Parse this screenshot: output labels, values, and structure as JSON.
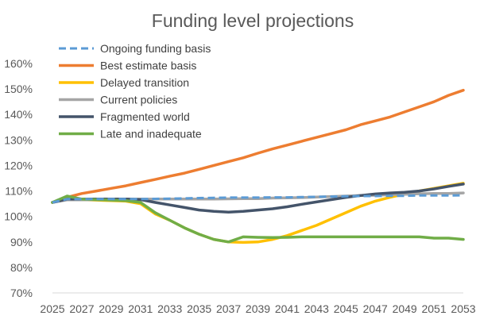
{
  "chart_data": {
    "type": "line",
    "title": "Funding level projections",
    "xlabel": "",
    "ylabel": "",
    "ylim": [
      0.7,
      1.6
    ],
    "y_ticks": [
      0.7,
      0.8,
      0.9,
      1.0,
      1.1,
      1.2,
      1.3,
      1.4,
      1.5,
      1.6
    ],
    "y_tick_labels": [
      "70%",
      "80%",
      "90%",
      "100%",
      "110%",
      "120%",
      "130%",
      "140%",
      "150%",
      "160%"
    ],
    "x": [
      2025,
      2026,
      2027,
      2028,
      2029,
      2030,
      2031,
      2032,
      2033,
      2034,
      2035,
      2036,
      2037,
      2038,
      2039,
      2040,
      2041,
      2042,
      2043,
      2044,
      2045,
      2046,
      2047,
      2048,
      2049,
      2050,
      2051,
      2052,
      2053
    ],
    "x_tick_labels": [
      "2025",
      "2027",
      "2029",
      "2031",
      "2033",
      "2035",
      "2037",
      "2039",
      "2041",
      "2043",
      "2045",
      "2047",
      "2049",
      "2051",
      "2053"
    ],
    "legend_position": "top-left",
    "series": [
      {
        "name": "Ongoing funding basis",
        "color": "#5B9BD5",
        "dashed": true,
        "values": [
          1.055,
          1.068,
          1.068,
          1.068,
          1.068,
          1.068,
          1.068,
          1.069,
          1.07,
          1.071,
          1.072,
          1.073,
          1.074,
          1.074,
          1.074,
          1.075,
          1.075,
          1.076,
          1.077,
          1.078,
          1.079,
          1.08,
          1.08,
          1.081,
          1.081,
          1.082,
          1.082,
          1.082,
          1.083
        ]
      },
      {
        "name": "Best estimate basis",
        "color": "#ED7D31",
        "dashed": false,
        "values": [
          1.055,
          1.075,
          1.09,
          1.1,
          1.11,
          1.12,
          1.133,
          1.145,
          1.158,
          1.17,
          1.185,
          1.2,
          1.215,
          1.23,
          1.248,
          1.265,
          1.28,
          1.295,
          1.31,
          1.325,
          1.34,
          1.36,
          1.375,
          1.39,
          1.41,
          1.43,
          1.45,
          1.475,
          1.495
        ]
      },
      {
        "name": "Delayed transition",
        "color": "#FFC000",
        "dashed": false,
        "values": [
          1.055,
          1.073,
          1.066,
          1.064,
          1.062,
          1.06,
          1.05,
          1.01,
          0.985,
          0.955,
          0.93,
          0.91,
          0.9,
          0.898,
          0.9,
          0.91,
          0.925,
          0.945,
          0.965,
          0.99,
          1.015,
          1.04,
          1.06,
          1.075,
          1.088,
          1.1,
          1.11,
          1.12,
          1.13
        ]
      },
      {
        "name": "Current policies",
        "color": "#A5A5A5",
        "dashed": false,
        "values": [
          1.055,
          1.065,
          1.065,
          1.066,
          1.067,
          1.068,
          1.068,
          1.068,
          1.068,
          1.068,
          1.068,
          1.068,
          1.069,
          1.07,
          1.07,
          1.072,
          1.073,
          1.074,
          1.076,
          1.078,
          1.08,
          1.082,
          1.083,
          1.085,
          1.087,
          1.089,
          1.09,
          1.09,
          1.092
        ]
      },
      {
        "name": "Fragmented world",
        "color": "#44546A",
        "dashed": false,
        "values": [
          1.055,
          1.068,
          1.068,
          1.068,
          1.068,
          1.068,
          1.066,
          1.055,
          1.045,
          1.035,
          1.025,
          1.02,
          1.017,
          1.02,
          1.025,
          1.03,
          1.038,
          1.048,
          1.057,
          1.066,
          1.075,
          1.082,
          1.088,
          1.092,
          1.095,
          1.1,
          1.108,
          1.118,
          1.127
        ]
      },
      {
        "name": "Late and inadequate",
        "color": "#70AD47",
        "dashed": false,
        "values": [
          1.055,
          1.08,
          1.068,
          1.066,
          1.064,
          1.062,
          1.055,
          1.015,
          0.985,
          0.955,
          0.93,
          0.91,
          0.9,
          0.92,
          0.918,
          0.917,
          0.918,
          0.92,
          0.92,
          0.92,
          0.92,
          0.92,
          0.92,
          0.92,
          0.92,
          0.92,
          0.915,
          0.915,
          0.91
        ]
      }
    ]
  }
}
